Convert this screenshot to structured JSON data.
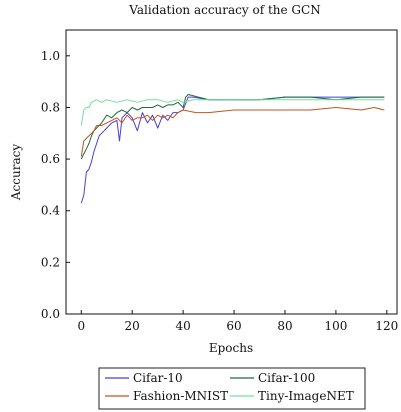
{
  "chart_data": {
    "type": "line",
    "title": "Validation accuracy of the GCN",
    "xlabel": "Epochs",
    "ylabel": "Accuracy",
    "xlim": [
      -6,
      124
    ],
    "ylim": [
      0.0,
      1.1
    ],
    "xticks": [
      0,
      20,
      40,
      60,
      80,
      100,
      120
    ],
    "yticks": [
      0.0,
      0.2,
      0.4,
      0.6,
      0.8,
      1.0
    ],
    "xtick_labels": [
      "0",
      "20",
      "40",
      "60",
      "80",
      "100",
      "120"
    ],
    "ytick_labels": [
      "0.0",
      "0.2",
      "0.4",
      "0.6",
      "0.8",
      "1.0"
    ],
    "grid": false,
    "legend_position": "bottom-center, below plot",
    "series": [
      {
        "name": "Cifar-10",
        "color": "#4b3fd6",
        "x": [
          0,
          1,
          2,
          3,
          4,
          5,
          6,
          7,
          8,
          9,
          10,
          12,
          14,
          15,
          16,
          18,
          20,
          22,
          24,
          26,
          28,
          30,
          32,
          34,
          36,
          38,
          40,
          42,
          44,
          50,
          60,
          70,
          80,
          90,
          100,
          110,
          119
        ],
        "values": [
          0.43,
          0.46,
          0.55,
          0.56,
          0.59,
          0.63,
          0.66,
          0.69,
          0.7,
          0.71,
          0.72,
          0.74,
          0.75,
          0.67,
          0.76,
          0.78,
          0.76,
          0.71,
          0.78,
          0.74,
          0.77,
          0.72,
          0.77,
          0.75,
          0.78,
          0.78,
          0.79,
          0.84,
          0.84,
          0.83,
          0.83,
          0.83,
          0.84,
          0.84,
          0.84,
          0.84,
          0.84
        ]
      },
      {
        "name": "Cifar-100",
        "color": "#1f6b3c",
        "x": [
          0,
          1,
          2,
          3,
          4,
          5,
          6,
          8,
          10,
          12,
          14,
          16,
          18,
          20,
          22,
          24,
          26,
          28,
          30,
          32,
          34,
          36,
          38,
          40,
          41,
          42,
          50,
          60,
          70,
          80,
          90,
          100,
          110,
          119
        ],
        "values": [
          0.6,
          0.62,
          0.64,
          0.66,
          0.69,
          0.71,
          0.72,
          0.74,
          0.77,
          0.76,
          0.78,
          0.79,
          0.78,
          0.8,
          0.79,
          0.8,
          0.8,
          0.8,
          0.81,
          0.8,
          0.81,
          0.81,
          0.82,
          0.8,
          0.84,
          0.85,
          0.83,
          0.83,
          0.83,
          0.84,
          0.84,
          0.83,
          0.84,
          0.84
        ]
      },
      {
        "name": "Fashion-MNIST",
        "color": "#c0561c",
        "x": [
          0,
          1,
          2,
          3,
          4,
          5,
          6,
          8,
          10,
          12,
          14,
          16,
          18,
          20,
          22,
          24,
          26,
          28,
          30,
          32,
          34,
          36,
          38,
          40,
          45,
          50,
          60,
          70,
          80,
          90,
          100,
          110,
          115,
          119
        ],
        "values": [
          0.61,
          0.67,
          0.68,
          0.69,
          0.7,
          0.71,
          0.73,
          0.73,
          0.74,
          0.75,
          0.76,
          0.74,
          0.77,
          0.75,
          0.76,
          0.76,
          0.77,
          0.75,
          0.77,
          0.76,
          0.77,
          0.76,
          0.78,
          0.79,
          0.78,
          0.78,
          0.79,
          0.79,
          0.79,
          0.79,
          0.8,
          0.79,
          0.8,
          0.79
        ]
      },
      {
        "name": "Tiny-ImageNET",
        "color": "#6fe39a",
        "x": [
          0,
          1,
          2,
          3,
          4,
          6,
          8,
          10,
          14,
          18,
          22,
          26,
          30,
          34,
          38,
          40,
          44,
          50,
          60,
          70,
          80,
          90,
          100,
          110,
          119
        ],
        "values": [
          0.73,
          0.79,
          0.8,
          0.8,
          0.82,
          0.83,
          0.82,
          0.83,
          0.82,
          0.83,
          0.82,
          0.83,
          0.83,
          0.82,
          0.83,
          0.82,
          0.83,
          0.83,
          0.83,
          0.83,
          0.83,
          0.83,
          0.83,
          0.83,
          0.83
        ]
      }
    ]
  }
}
